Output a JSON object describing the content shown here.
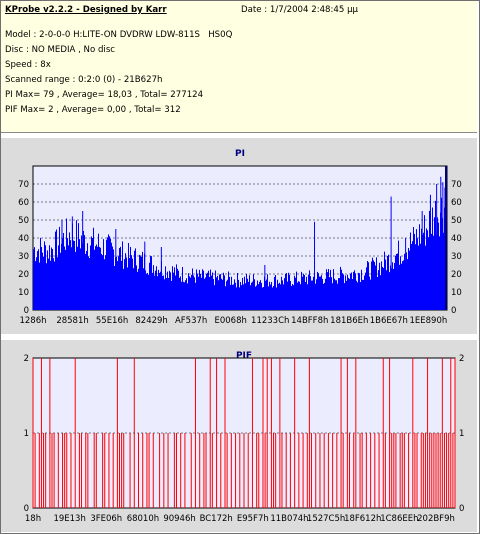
{
  "header": {
    "app_title": "KProbe v2.2.2 - Designed by Karr",
    "date": "Date : 1/7/2004 2:48:45 μμ",
    "model": "Model : 2-0-0-0 H:LITE-ON DVDRW LDW-811S   HS0Q",
    "disc": "Disc : NO MEDIA , No disc",
    "speed": "Speed : 8x",
    "scanned_range": "Scanned range : 0:2:0 (0) - 21B627h",
    "pi_summary": "PI Max= 79 , Average= 18,03 , Total= 277124",
    "pif_summary": "PIF Max= 2 , Average= 0,00 , Total= 312"
  },
  "colors": {
    "info_background": "#ffffe1",
    "panel_background": "#dcdcdc",
    "plot_background": "#ececff",
    "pi_series": "#0000ff",
    "pif_series": "#ff0000",
    "pi_edge_marker": "#000080",
    "title_text": "#000080"
  },
  "chart_data": [
    {
      "type": "bar",
      "title": "PI",
      "xlabel": "",
      "ylabel": "",
      "ylim": [
        0,
        80
      ],
      "yticks": [
        0,
        10,
        20,
        30,
        40,
        50,
        60,
        70
      ],
      "grid": true,
      "right_axis": true,
      "x_tick_labels": [
        "1286h",
        "28581h",
        "55E16h",
        "82429h",
        "AF537h",
        "E0068h",
        "11233Ch",
        "14BFF8h",
        "181B6Eh",
        "1B6E67h",
        "1EE890h"
      ],
      "profile": [
        [
          0,
          35
        ],
        [
          0.04,
          34
        ],
        [
          0.09,
          44
        ],
        [
          0.12,
          40
        ],
        [
          0.16,
          37
        ],
        [
          0.2,
          33
        ],
        [
          0.25,
          29
        ],
        [
          0.3,
          25
        ],
        [
          0.35,
          21
        ],
        [
          0.4,
          19
        ],
        [
          0.45,
          18
        ],
        [
          0.5,
          17
        ],
        [
          0.55,
          17
        ],
        [
          0.6,
          17
        ],
        [
          0.65,
          18
        ],
        [
          0.7,
          19
        ],
        [
          0.75,
          20
        ],
        [
          0.8,
          22
        ],
        [
          0.84,
          26
        ],
        [
          0.88,
          32
        ],
        [
          0.92,
          40
        ],
        [
          0.95,
          47
        ],
        [
          0.97,
          55
        ],
        [
          1.0,
          60
        ]
      ],
      "spikes": [
        [
          0.12,
          55
        ],
        [
          0.095,
          52
        ],
        [
          0.07,
          50
        ],
        [
          0.2,
          45
        ],
        [
          0.27,
          38
        ],
        [
          0.31,
          35
        ],
        [
          0.56,
          25
        ],
        [
          0.68,
          49
        ],
        [
          0.865,
          63
        ],
        [
          0.9,
          40
        ],
        [
          0.94,
          55
        ],
        [
          0.985,
          74
        ],
        [
          0.99,
          71
        ],
        [
          0.995,
          68
        ],
        [
          0.975,
          70
        ],
        [
          0.96,
          64
        ]
      ]
    },
    {
      "type": "bar",
      "title": "PIF",
      "xlabel": "",
      "ylabel": "",
      "ylim": [
        0,
        2
      ],
      "yticks": [
        0,
        1,
        2
      ],
      "grid": true,
      "right_axis": true,
      "x_tick_labels": [
        "18h",
        "19E13h",
        "3FE06h",
        "68010h",
        "90946h",
        "BC172h",
        "E95F7h",
        "11B074h",
        "1527C5h",
        "18F612h",
        "1C86EEh",
        "202BF9h"
      ],
      "values_at_2": [
        0.02,
        0.04,
        0.1,
        0.2,
        0.24,
        0.385,
        0.42,
        0.435,
        0.455,
        0.52,
        0.545,
        0.555,
        0.565,
        0.585,
        0.62,
        0.655,
        0.73,
        0.745,
        0.765,
        0.83,
        0.845,
        0.9,
        0.935,
        0.97,
        0.99
      ],
      "values_at_1": [
        0.005,
        0.015,
        0.025,
        0.03,
        0.045,
        0.05,
        0.06,
        0.07,
        0.075,
        0.08,
        0.09,
        0.11,
        0.115,
        0.125,
        0.13,
        0.145,
        0.15,
        0.165,
        0.17,
        0.18,
        0.19,
        0.205,
        0.21,
        0.215,
        0.23,
        0.25,
        0.26,
        0.27,
        0.275,
        0.285,
        0.3,
        0.31,
        0.32,
        0.335,
        0.34,
        0.35,
        0.36,
        0.375,
        0.395,
        0.405,
        0.41,
        0.425,
        0.445,
        0.46,
        0.47,
        0.48,
        0.49,
        0.5,
        0.51,
        0.53,
        0.535,
        0.55,
        0.57,
        0.575,
        0.59,
        0.6,
        0.61,
        0.63,
        0.64,
        0.65,
        0.66,
        0.67,
        0.68,
        0.69,
        0.7,
        0.71,
        0.72,
        0.735,
        0.75,
        0.76,
        0.775,
        0.78,
        0.79,
        0.8,
        0.81,
        0.82,
        0.835,
        0.85,
        0.855,
        0.86,
        0.87,
        0.875,
        0.88,
        0.89,
        0.905,
        0.91,
        0.92,
        0.925,
        0.93,
        0.94,
        0.945,
        0.95,
        0.955,
        0.96,
        0.965,
        0.975,
        0.98,
        0.985,
        0.995
      ]
    }
  ]
}
